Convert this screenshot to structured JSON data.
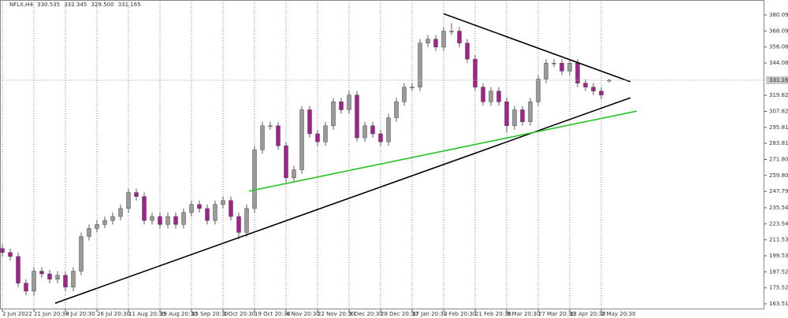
{
  "chart_data": {
    "type": "candlestick",
    "header": {
      "symbol": "NFLX,H4",
      "open": 330.535,
      "high": 332.345,
      "low": {
        "value": 329.5,
        "label": "329.500"
      },
      "close": 331.165
    },
    "up_color": "#9a9a9a",
    "down_color": "#a3208f",
    "grid_color": "#b03aa6",
    "xlim": [
      -0.3,
      96.7
    ],
    "ylim": [
      159.4,
      391.3
    ],
    "xticks": [
      {
        "value": 0,
        "label": "2 Jun 2022"
      },
      {
        "value": 4,
        "label": "21 Jun 20:30"
      },
      {
        "value": 8,
        "label": "8 Jul 20:30"
      },
      {
        "value": 12,
        "label": "26 Jul 20:30"
      },
      {
        "value": 16,
        "label": "11 Aug 20:30"
      },
      {
        "value": 20,
        "label": "29 Aug 20:30"
      },
      {
        "value": 24,
        "label": "15 Sep 20:30"
      },
      {
        "value": 28,
        "label": "3 Oct 20:30"
      },
      {
        "value": 32,
        "label": "19 Oct 20:30"
      },
      {
        "value": 36,
        "label": "4 Nov 20:30"
      },
      {
        "value": 40,
        "label": "22 Nov 20:30"
      },
      {
        "value": 44,
        "label": "9 Dec 20:30"
      },
      {
        "value": 48,
        "label": "28 Dec 20:30"
      },
      {
        "value": 52,
        "label": "17 Jan 20:30"
      },
      {
        "value": 56,
        "label": "2 Feb 20:30"
      },
      {
        "value": 60,
        "label": "21 Feb 20:30"
      },
      {
        "value": 64,
        "label": "9 Mar 20:30"
      },
      {
        "value": 68,
        "label": "27 Mar 20:30"
      },
      {
        "value": 72,
        "label": "13 Apr 20:30"
      },
      {
        "value": 76,
        "label": "2 May 20:30"
      }
    ],
    "yticks": [
      380.095,
      {
        "value": 368.09,
        "label": "368.090"
      },
      356.085,
      {
        "value": 344.08,
        "label": "344.080"
      },
      319.825,
      {
        "value": 307.82,
        "label": "307.820"
      },
      {
        "value": 295.81,
        "label": "295.810"
      },
      {
        "value": 283.81,
        "label": "283.810"
      },
      271.805,
      {
        "value": 259.8,
        "label": "259.800"
      },
      247.795,
      235.545,
      223.54,
      211.535,
      {
        "value": 199.53,
        "label": "199.530"
      },
      187.525,
      175.52,
      163.515
    ],
    "open": [
      205,
      202,
      199,
      179,
      173,
      188,
      186,
      182,
      185,
      176,
      188,
      214,
      220,
      223,
      226,
      229,
      235,
      247,
      244,
      226,
      229,
      223,
      229,
      223,
      232,
      238,
      235,
      226,
      238,
      241,
      229,
      217,
      235,
      279,
      297,
      297,
      282,
      258,
      264,
      309,
      291,
      285,
      297,
      315,
      309,
      320,
      288,
      297,
      291,
      285,
      303,
      315,
      326,
      326,
      359,
      362,
      356,
      368,
      368,
      359,
      347,
      326,
      315,
      323,
      315,
      297,
      309,
      300,
      315,
      332,
      344,
      344,
      338,
      344,
      329,
      326,
      323,
      330.535
    ],
    "high": [
      208,
      205,
      202,
      182,
      191,
      191,
      189,
      188,
      188,
      191,
      217,
      223,
      226,
      229,
      232,
      238,
      250,
      250,
      247,
      232,
      232,
      232,
      232,
      235,
      241,
      241,
      238,
      241,
      244,
      244,
      232,
      238,
      282,
      300,
      300,
      300,
      285,
      267,
      312,
      312,
      294,
      300,
      318,
      318,
      323,
      323,
      300,
      300,
      294,
      306,
      318,
      329,
      329,
      362,
      365,
      365,
      371,
      374,
      371,
      362,
      350,
      329,
      326,
      326,
      318,
      312,
      312,
      318,
      335,
      347,
      347,
      347,
      347,
      347,
      332,
      329,
      326,
      332.345
    ],
    "low": [
      199,
      196,
      176,
      170,
      170,
      183,
      179,
      179,
      173,
      173,
      185,
      211,
      217,
      220,
      223,
      226,
      232,
      241,
      223,
      223,
      220,
      220,
      220,
      220,
      229,
      232,
      223,
      223,
      235,
      226,
      212,
      214,
      232,
      276,
      294,
      279,
      255,
      255,
      261,
      288,
      282,
      282,
      294,
      306,
      306,
      285,
      285,
      288,
      282,
      282,
      300,
      312,
      323,
      323,
      356,
      353,
      353,
      365,
      356,
      344,
      323,
      312,
      312,
      312,
      292,
      294,
      297,
      297,
      312,
      329,
      341,
      335,
      335,
      326,
      323,
      320,
      317,
      329.5
    ],
    "close": [
      202,
      199,
      179,
      173,
      188,
      186,
      182,
      185,
      176,
      188,
      214,
      220,
      223,
      226,
      229,
      235,
      247,
      244,
      226,
      229,
      223,
      229,
      223,
      232,
      238,
      235,
      226,
      238,
      241,
      229,
      217,
      235,
      279,
      297,
      297,
      282,
      258,
      264,
      309,
      291,
      285,
      297,
      315,
      309,
      320,
      288,
      297,
      291,
      285,
      303,
      315,
      326,
      326,
      359,
      362,
      356,
      368,
      368,
      359,
      347,
      326,
      315,
      323,
      315,
      297,
      309,
      300,
      315,
      332,
      344,
      344,
      338,
      344,
      329,
      326,
      323,
      320,
      331.165
    ],
    "trendlines": [
      {
        "color": "#000000",
        "x": [
          6.7,
          79.7
        ],
        "y": [
          164,
          318
        ]
      },
      {
        "color": "#000000",
        "x": [
          56,
          79.7
        ],
        "y": [
          381,
          330
        ]
      },
      {
        "color": "#22c422",
        "x": [
          31.3,
          80.5
        ],
        "y": [
          248,
          308
        ]
      }
    ]
  }
}
